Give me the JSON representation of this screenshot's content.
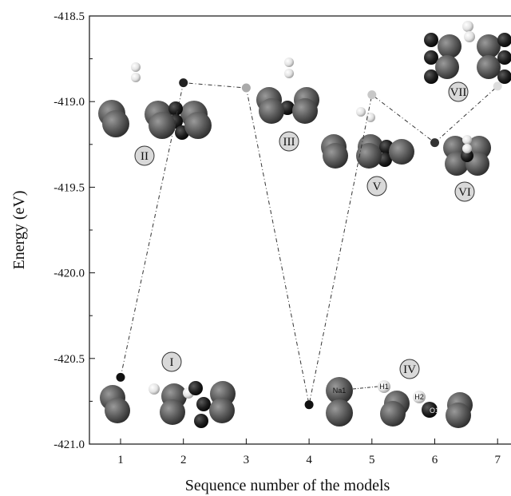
{
  "chart_data": {
    "type": "scatter",
    "title": "",
    "xlabel": "Sequence number of the models",
    "ylabel": "Energy (eV)",
    "xlim": [
      0.5,
      7.25
    ],
    "ylim": [
      -421.0,
      -418.5
    ],
    "xticks": [
      "1",
      "2",
      "3",
      "4",
      "5",
      "6",
      "7"
    ],
    "yticks": [
      "-418.5",
      "-419.0",
      "-419.5",
      "-420.0",
      "-420.5",
      "-421.0"
    ],
    "series": [
      {
        "line_style": "dash-dot",
        "x": [
          1,
          2,
          3,
          4,
          5,
          6,
          7
        ],
        "y": [
          -420.61,
          -418.89,
          -418.92,
          -420.77,
          -418.96,
          -419.24,
          -418.91
        ],
        "marker_colors": [
          "#111111",
          "#222222",
          "#aaaaaa",
          "#111111",
          "#c8c8c8",
          "#333333",
          "#dddddd"
        ]
      }
    ],
    "annotations": {
      "model_labels": [
        "I",
        "II",
        "III",
        "IV",
        "V",
        "VI",
        "VII"
      ],
      "atom_labels": [
        "Na1",
        "H1",
        "H2",
        "O1"
      ]
    },
    "grid": false,
    "legend": "none"
  },
  "colors": {
    "na_atom": "#5a5a5a",
    "o_atom": "#1e1e1e",
    "h_atom": "#e6e6e6",
    "label_circle": "#d9d9d9"
  }
}
